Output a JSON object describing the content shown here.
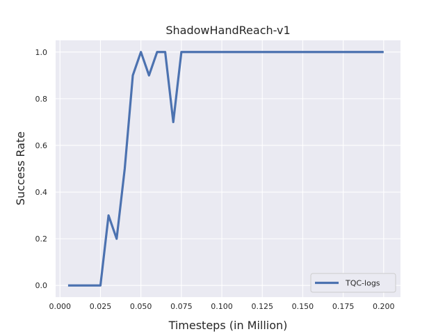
{
  "chart_data": {
    "type": "line",
    "title": "ShadowHandReach-v1",
    "xlabel": "Timesteps (in Million)",
    "ylabel": "Success Rate",
    "xlim": [
      -0.0027,
      0.2104
    ],
    "ylim": [
      -0.05,
      1.05
    ],
    "xticks": [
      0.0,
      0.025,
      0.05,
      0.075,
      0.1,
      0.125,
      0.15,
      0.175,
      0.2
    ],
    "xtick_labels": [
      "0.000",
      "0.025",
      "0.050",
      "0.075",
      "0.100",
      "0.125",
      "0.150",
      "0.175",
      "0.200"
    ],
    "yticks": [
      0.0,
      0.2,
      0.4,
      0.6,
      0.8,
      1.0
    ],
    "ytick_labels": [
      "0.0",
      "0.2",
      "0.4",
      "0.6",
      "0.8",
      "1.0"
    ],
    "grid": true,
    "legend_position": "bottom-right",
    "colors": {
      "background": "#eaeaf2",
      "grid": "#ffffff",
      "line": "#4c72b0"
    },
    "series": [
      {
        "name": "TQC-logs",
        "x": [
          0.005,
          0.01,
          0.015,
          0.02,
          0.025,
          0.03,
          0.035,
          0.04,
          0.045,
          0.05,
          0.055,
          0.06,
          0.065,
          0.07,
          0.075,
          0.08,
          0.1,
          0.125,
          0.15,
          0.175,
          0.2
        ],
        "y": [
          0.0,
          0.0,
          0.0,
          0.0,
          0.0,
          0.3,
          0.2,
          0.5,
          0.9,
          1.0,
          0.9,
          1.0,
          1.0,
          0.7,
          1.0,
          1.0,
          1.0,
          1.0,
          1.0,
          1.0,
          1.0
        ]
      }
    ]
  }
}
